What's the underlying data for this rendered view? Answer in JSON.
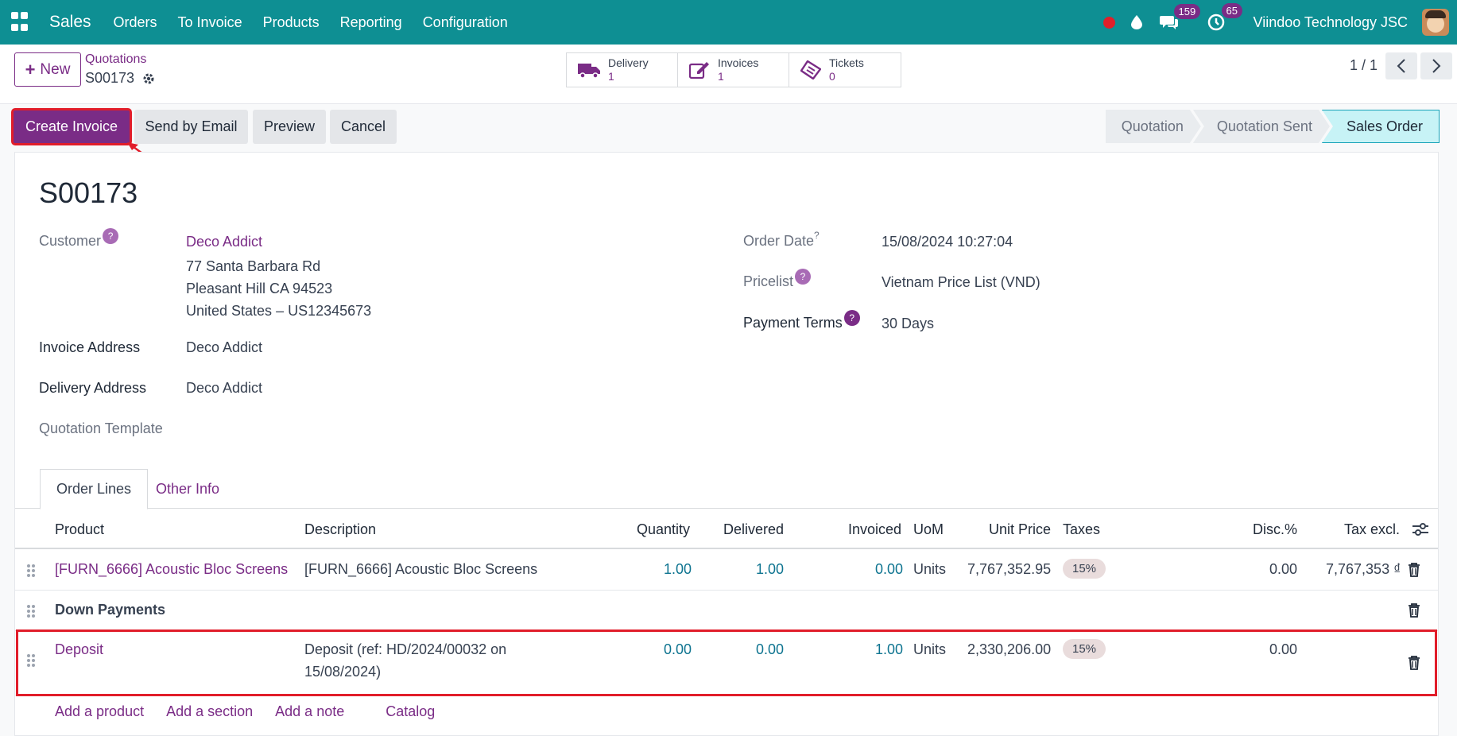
{
  "topbar": {
    "app_name": "Sales",
    "menu": [
      "Orders",
      "To Invoice",
      "Products",
      "Reporting",
      "Configuration"
    ],
    "messages_count": "159",
    "activities_count": "65",
    "company": "Viindoo Technology JSC"
  },
  "control": {
    "new_label": "New",
    "breadcrumb": "Quotations",
    "record": "S00173",
    "smart_buttons": [
      {
        "label": "Delivery",
        "count": "1"
      },
      {
        "label": "Invoices",
        "count": "1"
      },
      {
        "label": "Tickets",
        "count": "0"
      }
    ],
    "pager": "1 / 1"
  },
  "actions": {
    "create_invoice": "Create Invoice",
    "send_email": "Send by Email",
    "preview": "Preview",
    "cancel": "Cancel"
  },
  "status": [
    "Quotation",
    "Quotation Sent",
    "Sales Order"
  ],
  "status_active": "Sales Order",
  "form": {
    "title": "S00173",
    "customer_label": "Customer",
    "customer_name": "Deco Addict",
    "address_line1": "77 Santa Barbara Rd",
    "address_line2": "Pleasant Hill CA 94523",
    "address_line3": "United States – US12345673",
    "invoice_address_label": "Invoice Address",
    "invoice_address": "Deco Addict",
    "delivery_address_label": "Delivery Address",
    "delivery_address": "Deco Addict",
    "quotation_template_label": "Quotation Template",
    "order_date_label": "Order Date",
    "order_date": "15/08/2024 10:27:04",
    "pricelist_label": "Pricelist",
    "pricelist": "Vietnam Price List (VND)",
    "payment_terms_label": "Payment Terms",
    "payment_terms": "30 Days",
    "help_mark": "?",
    "order_date_mark": "?"
  },
  "tabs": {
    "order_lines": "Order Lines",
    "other_info": "Other Info"
  },
  "table": {
    "headers": {
      "product": "Product",
      "description": "Description",
      "quantity": "Quantity",
      "delivered": "Delivered",
      "invoiced": "Invoiced",
      "uom": "UoM",
      "unit_price": "Unit Price",
      "taxes": "Taxes",
      "disc": "Disc.%",
      "tax_excl": "Tax excl."
    },
    "line1": {
      "product": "[FURN_6666] Acoustic Bloc Screens",
      "description": "[FURN_6666] Acoustic Bloc Screens",
      "quantity": "1.00",
      "delivered": "1.00",
      "invoiced": "0.00",
      "uom": "Units",
      "unit_price": "7,767,352.95",
      "tax": "15%",
      "disc": "0.00",
      "tax_excl": "7,767,353 ₫"
    },
    "section": "Down Payments",
    "line2": {
      "product": "Deposit",
      "description_1": "Deposit (ref: HD/2024/00032 on",
      "description_2": "15/08/2024)",
      "quantity": "0.00",
      "delivered": "0.00",
      "invoiced": "1.00",
      "uom": "Units",
      "unit_price": "2,330,206.00",
      "tax": "15%",
      "disc": "0.00"
    },
    "add_product": "Add a product",
    "add_section": "Add a section",
    "add_note": "Add a note",
    "catalog": "Catalog"
  }
}
